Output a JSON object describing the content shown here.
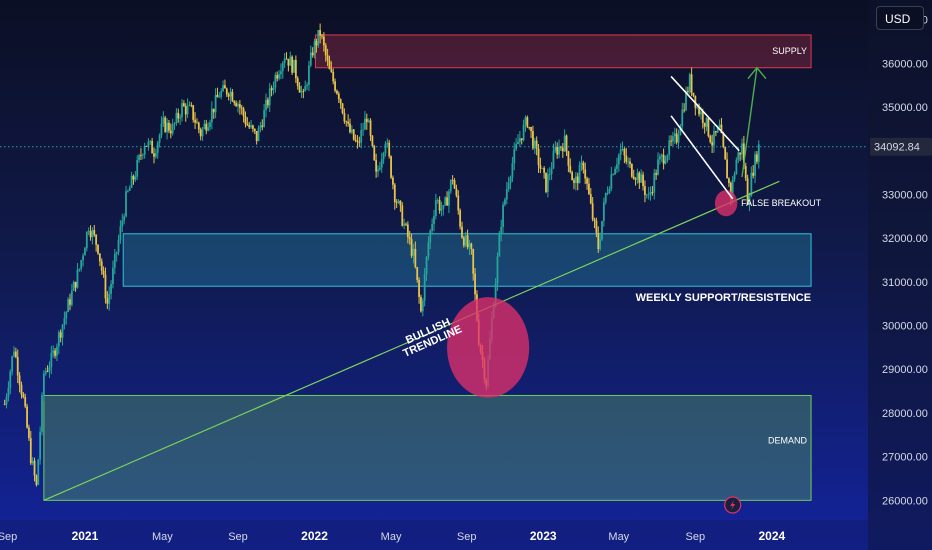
{
  "currency": "USD",
  "colors": {
    "candle_up": "#26a69a",
    "candle_down": "#e8c34a",
    "supply": "#e03a4e",
    "support": "#2ec4d8",
    "demand": "#6fcf5a",
    "trendline": "#7bd35c",
    "projection": "#4caf50",
    "channel": "#ffffff",
    "highlight": "#e0306a",
    "price_tag": "#23283d"
  },
  "chart_data": {
    "type": "candlestick",
    "x_ticks": [
      "Sep",
      "2021",
      "May",
      "Sep",
      "2022",
      "May",
      "Sep",
      "2023",
      "May",
      "Sep",
      "2024"
    ],
    "bold_ticks": [
      "2021",
      "2022",
      "2023",
      "2024"
    ],
    "y_ticks": [
      "37000.00",
      "36000.00",
      "35000.00",
      "34000.00",
      "33000.00",
      "32000.00",
      "31000.00",
      "30000.00",
      "29000.00",
      "28000.00",
      "27000.00",
      "26000.00"
    ],
    "y_values": [
      37000,
      36000,
      35000,
      34000,
      33000,
      32000,
      31000,
      30000,
      29000,
      28000,
      27000,
      26000
    ],
    "ylim": [
      25550,
      37450
    ],
    "last_price": "34092.84",
    "last_price_value": 34092.84,
    "x_ticks_t": [
      0.3,
      8.6,
      16.9,
      25.0,
      33.2,
      41.4,
      49.5,
      57.7,
      65.8,
      74.0,
      82.2
    ],
    "xlim": [
      -0.5,
      92.5
    ],
    "price_path": [
      [
        0.0,
        28200
      ],
      [
        1.0,
        29500
      ],
      [
        2.0,
        28300
      ],
      [
        2.8,
        27000
      ],
      [
        3.4,
        26300
      ],
      [
        4.2,
        28900
      ],
      [
        5.0,
        29200
      ],
      [
        6.0,
        29900
      ],
      [
        7.0,
        30600
      ],
      [
        8.0,
        31300
      ],
      [
        9.0,
        32300
      ],
      [
        10.0,
        31800
      ],
      [
        11.0,
        30500
      ],
      [
        12.0,
        31700
      ],
      [
        13.0,
        32900
      ],
      [
        14.0,
        33500
      ],
      [
        15.0,
        34200
      ],
      [
        16.0,
        34000
      ],
      [
        17.0,
        34600
      ],
      [
        18.0,
        34500
      ],
      [
        19.0,
        35000
      ],
      [
        20.0,
        34900
      ],
      [
        21.0,
        34400
      ],
      [
        22.0,
        34800
      ],
      [
        23.0,
        35300
      ],
      [
        24.0,
        35400
      ],
      [
        25.0,
        35100
      ],
      [
        26.0,
        34600
      ],
      [
        27.0,
        34300
      ],
      [
        28.0,
        35000
      ],
      [
        29.0,
        35700
      ],
      [
        30.0,
        36200
      ],
      [
        31.0,
        35900
      ],
      [
        32.0,
        35200
      ],
      [
        33.0,
        36300
      ],
      [
        33.8,
        36700
      ],
      [
        34.8,
        35800
      ],
      [
        35.8,
        35300
      ],
      [
        36.8,
        34500
      ],
      [
        37.8,
        34100
      ],
      [
        38.8,
        34800
      ],
      [
        39.8,
        33400
      ],
      [
        40.8,
        34300
      ],
      [
        41.8,
        33000
      ],
      [
        42.8,
        32300
      ],
      [
        43.8,
        31600
      ],
      [
        44.6,
        30300
      ],
      [
        45.4,
        31900
      ],
      [
        46.2,
        32900
      ],
      [
        47.0,
        32600
      ],
      [
        48.0,
        33400
      ],
      [
        49.0,
        32100
      ],
      [
        50.0,
        31600
      ],
      [
        50.8,
        29700
      ],
      [
        51.6,
        28700
      ],
      [
        52.4,
        30600
      ],
      [
        53.2,
        32400
      ],
      [
        54.0,
        33400
      ],
      [
        55.0,
        34200
      ],
      [
        56.0,
        34700
      ],
      [
        57.0,
        33900
      ],
      [
        58.0,
        33200
      ],
      [
        59.0,
        34000
      ],
      [
        60.0,
        34200
      ],
      [
        61.0,
        33200
      ],
      [
        62.0,
        33700
      ],
      [
        62.8,
        32700
      ],
      [
        63.6,
        31800
      ],
      [
        64.4,
        33000
      ],
      [
        65.2,
        33600
      ],
      [
        66.0,
        34000
      ],
      [
        67.0,
        33600
      ],
      [
        68.0,
        33400
      ],
      [
        69.0,
        32900
      ],
      [
        70.0,
        33700
      ],
      [
        71.0,
        34000
      ],
      [
        72.0,
        34300
      ],
      [
        72.8,
        35100
      ],
      [
        73.4,
        35600
      ],
      [
        74.2,
        35000
      ],
      [
        75.0,
        34700
      ],
      [
        75.8,
        34200
      ],
      [
        76.6,
        34500
      ],
      [
        77.2,
        33700
      ],
      [
        77.8,
        33000
      ],
      [
        78.4,
        33800
      ],
      [
        79.0,
        34100
      ],
      [
        79.6,
        32900
      ],
      [
        80.2,
        33600
      ],
      [
        80.8,
        34092
      ]
    ],
    "zones": [
      {
        "name": "SUPPLY",
        "t0": 33.3,
        "t1": 86.4,
        "y0": 35900,
        "y1": 36650
      },
      {
        "name": "WEEKLY SUPPORT/RESISTENCE",
        "t0": 12.7,
        "t1": 86.4,
        "y0": 30900,
        "y1": 32100
      },
      {
        "name": "DEMAND",
        "t0": 4.2,
        "t1": 86.4,
        "y0": 26000,
        "y1": 28400
      }
    ],
    "trendline": {
      "t0": 4.2,
      "y0": 26000,
      "t1": 83.0,
      "y1": 33300
    },
    "channel": {
      "upper": {
        "t0": 71.4,
        "y0": 35700,
        "t1": 78.7,
        "y1": 34000
      },
      "lower": {
        "t0": 71.4,
        "y0": 34800,
        "t1": 78.0,
        "y1": 32900
      }
    },
    "projection": {
      "t0": 79.0,
      "y0": 33400,
      "t1": 80.6,
      "y1": 35900
    },
    "highlights": [
      {
        "name": "bullish-trendline-break",
        "t": 51.8,
        "y": 29500,
        "rt": 4.4,
        "ry": 1150
      },
      {
        "name": "false-breakout",
        "t": 77.3,
        "y": 32800,
        "rt": 1.2,
        "ry": 300
      }
    ],
    "annotations": {
      "supply": "SUPPLY",
      "weekly": "WEEKLY SUPPORT/RESISTENCE",
      "demand": "DEMAND",
      "false_breakout": "FALSE BREAKOUT",
      "bullish_1": "BULLISH",
      "bullish_2": "TRENDLINE"
    }
  }
}
